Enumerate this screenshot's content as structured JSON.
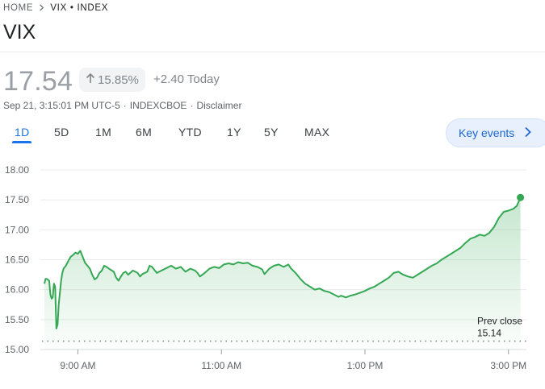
{
  "breadcrumb": {
    "home": "HOME",
    "current": "VIX • INDEX"
  },
  "title": "VIX",
  "quote": {
    "price": "17.54",
    "change_pct": "15.85%",
    "change_abs": "+2.40 Today"
  },
  "meta": {
    "timestamp": "Sep 21, 3:15:01 PM UTC-5",
    "exchange": "INDEXCBOE",
    "separator": "·",
    "disclaimer": "Disclaimer"
  },
  "tabs": [
    "1D",
    "5D",
    "1M",
    "6M",
    "YTD",
    "1Y",
    "5Y",
    "MAX"
  ],
  "active_tab": "1D",
  "key_events_label": "Key events",
  "colors": {
    "line": "#34a853",
    "accent": "#1a73e8",
    "fill": "#e6f4ea"
  },
  "chart_data": {
    "type": "area",
    "y_ticks": [
      "18.00",
      "17.50",
      "17.00",
      "16.50",
      "16.00",
      "15.50",
      "15.00"
    ],
    "ylim": [
      15.0,
      18.0
    ],
    "x_ticks": [
      {
        "label": "9:00 AM",
        "minute": 570
      },
      {
        "label": "11:00 AM",
        "minute": 690
      },
      {
        "label": "1:00 PM",
        "minute": 810
      },
      {
        "label": "3:00 PM",
        "minute": 930
      }
    ],
    "xlim_minutes": [
      540,
      945
    ],
    "prev_close": {
      "label": "Prev close",
      "value": 15.14,
      "value_label": "15.14"
    },
    "grid": true,
    "points": [
      [
        542,
        16.1
      ],
      [
        543,
        16.18
      ],
      [
        544,
        16.18
      ],
      [
        546,
        16.15
      ],
      [
        547,
        15.92
      ],
      [
        548,
        15.85
      ],
      [
        549,
        15.87
      ],
      [
        550,
        16.1
      ],
      [
        551,
        16.05
      ],
      [
        552,
        15.35
      ],
      [
        553,
        15.42
      ],
      [
        554,
        15.75
      ],
      [
        555,
        15.95
      ],
      [
        556,
        16.15
      ],
      [
        557,
        16.28
      ],
      [
        558,
        16.35
      ],
      [
        560,
        16.4
      ],
      [
        562,
        16.48
      ],
      [
        564,
        16.55
      ],
      [
        566,
        16.58
      ],
      [
        568,
        16.62
      ],
      [
        570,
        16.6
      ],
      [
        572,
        16.65
      ],
      [
        574,
        16.55
      ],
      [
        576,
        16.45
      ],
      [
        578,
        16.4
      ],
      [
        580,
        16.35
      ],
      [
        582,
        16.25
      ],
      [
        584,
        16.17
      ],
      [
        586,
        16.2
      ],
      [
        588,
        16.28
      ],
      [
        590,
        16.32
      ],
      [
        592,
        16.4
      ],
      [
        594,
        16.38
      ],
      [
        596,
        16.35
      ],
      [
        600,
        16.3
      ],
      [
        602,
        16.2
      ],
      [
        604,
        16.15
      ],
      [
        606,
        16.22
      ],
      [
        608,
        16.28
      ],
      [
        610,
        16.3
      ],
      [
        612,
        16.25
      ],
      [
        616,
        16.32
      ],
      [
        620,
        16.28
      ],
      [
        622,
        16.22
      ],
      [
        624,
        16.26
      ],
      [
        628,
        16.3
      ],
      [
        630,
        16.4
      ],
      [
        632,
        16.38
      ],
      [
        636,
        16.28
      ],
      [
        640,
        16.32
      ],
      [
        644,
        16.36
      ],
      [
        648,
        16.4
      ],
      [
        652,
        16.35
      ],
      [
        656,
        16.38
      ],
      [
        660,
        16.3
      ],
      [
        664,
        16.35
      ],
      [
        668,
        16.32
      ],
      [
        670,
        16.28
      ],
      [
        672,
        16.22
      ],
      [
        676,
        16.28
      ],
      [
        680,
        16.35
      ],
      [
        684,
        16.38
      ],
      [
        688,
        16.36
      ],
      [
        692,
        16.42
      ],
      [
        696,
        16.44
      ],
      [
        700,
        16.42
      ],
      [
        704,
        16.46
      ],
      [
        708,
        16.44
      ],
      [
        712,
        16.45
      ],
      [
        716,
        16.4
      ],
      [
        720,
        16.38
      ],
      [
        724,
        16.34
      ],
      [
        726,
        16.26
      ],
      [
        730,
        16.35
      ],
      [
        734,
        16.4
      ],
      [
        738,
        16.42
      ],
      [
        742,
        16.38
      ],
      [
        746,
        16.42
      ],
      [
        748,
        16.36
      ],
      [
        752,
        16.28
      ],
      [
        756,
        16.18
      ],
      [
        760,
        16.1
      ],
      [
        764,
        16.05
      ],
      [
        768,
        16.0
      ],
      [
        772,
        16.02
      ],
      [
        776,
        15.98
      ],
      [
        780,
        15.96
      ],
      [
        784,
        15.92
      ],
      [
        788,
        15.88
      ],
      [
        790,
        15.9
      ],
      [
        794,
        15.87
      ],
      [
        798,
        15.9
      ],
      [
        802,
        15.92
      ],
      [
        806,
        15.95
      ],
      [
        810,
        15.98
      ],
      [
        814,
        16.02
      ],
      [
        818,
        16.05
      ],
      [
        822,
        16.1
      ],
      [
        826,
        16.15
      ],
      [
        830,
        16.2
      ],
      [
        834,
        16.28
      ],
      [
        838,
        16.3
      ],
      [
        842,
        16.25
      ],
      [
        846,
        16.22
      ],
      [
        850,
        16.2
      ],
      [
        854,
        16.25
      ],
      [
        858,
        16.3
      ],
      [
        862,
        16.35
      ],
      [
        866,
        16.4
      ],
      [
        870,
        16.44
      ],
      [
        874,
        16.5
      ],
      [
        878,
        16.55
      ],
      [
        882,
        16.6
      ],
      [
        886,
        16.65
      ],
      [
        890,
        16.7
      ],
      [
        894,
        16.78
      ],
      [
        898,
        16.85
      ],
      [
        902,
        16.88
      ],
      [
        906,
        16.92
      ],
      [
        910,
        16.9
      ],
      [
        914,
        16.95
      ],
      [
        918,
        17.05
      ],
      [
        922,
        17.2
      ],
      [
        926,
        17.3
      ],
      [
        930,
        17.32
      ],
      [
        934,
        17.35
      ],
      [
        937,
        17.4
      ],
      [
        940,
        17.54
      ]
    ]
  }
}
